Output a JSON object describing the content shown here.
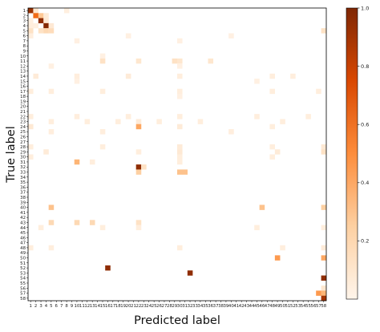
{
  "chart_data": {
    "type": "heatmap",
    "title": "",
    "xlabel": "Predicted label",
    "ylabel": "True label",
    "x_tick_labels": [
      "1",
      "2",
      "3",
      "4",
      "5",
      "6",
      "7",
      "8",
      "9",
      "10",
      "11",
      "12",
      "13",
      "14",
      "15",
      "16",
      "17",
      "18",
      "19",
      "20",
      "21",
      "22",
      "23",
      "24",
      "25",
      "26",
      "27",
      "28",
      "29",
      "30",
      "31",
      "32",
      "33",
      "34",
      "35",
      "36",
      "37",
      "38",
      "39",
      "40",
      "41",
      "42",
      "43",
      "44",
      "45",
      "46",
      "47",
      "48",
      "49",
      "50",
      "51",
      "52",
      "53",
      "54",
      "55",
      "56",
      "57",
      "58"
    ],
    "y_tick_labels": [
      "1",
      "2",
      "3",
      "4",
      "5",
      "6",
      "7",
      "8",
      "9",
      "10",
      "11",
      "12",
      "13",
      "14",
      "15",
      "16",
      "17",
      "18",
      "19",
      "20",
      "21",
      "22",
      "23",
      "24",
      "25",
      "26",
      "27",
      "28",
      "29",
      "30",
      "31",
      "32",
      "33",
      "34",
      "35",
      "36",
      "37",
      "38",
      "39",
      "40",
      "41",
      "42",
      "43",
      "44",
      "45",
      "46",
      "47",
      "48",
      "49",
      "50",
      "51",
      "52",
      "53",
      "54",
      "55",
      "56",
      "57",
      "58"
    ],
    "value_range": [
      0,
      1.0
    ],
    "colormap": "Oranges",
    "colormap_low": "#fff5eb",
    "colormap_high": "#7f2704",
    "colorbar_ticks": [
      0.2,
      0.4,
      0.6,
      0.8,
      1.0
    ],
    "colorbar_tick_labels": [
      "0.2",
      "0.4",
      "0.6",
      "0.8",
      "1.0"
    ],
    "cells": [
      [
        1,
        1,
        0.92
      ],
      [
        1,
        2,
        0.12
      ],
      [
        1,
        8,
        0.05
      ],
      [
        2,
        2,
        0.62
      ],
      [
        2,
        3,
        0.28
      ],
      [
        2,
        4,
        0.08
      ],
      [
        3,
        1,
        0.05
      ],
      [
        3,
        3,
        0.95
      ],
      [
        3,
        4,
        0.1
      ],
      [
        4,
        1,
        0.06
      ],
      [
        4,
        2,
        0.05
      ],
      [
        4,
        4,
        0.98
      ],
      [
        4,
        5,
        0.1
      ],
      [
        5,
        1,
        0.15
      ],
      [
        5,
        3,
        0.15
      ],
      [
        5,
        4,
        0.2
      ],
      [
        5,
        5,
        0.18
      ],
      [
        5,
        58,
        0.15
      ],
      [
        6,
        1,
        0.05
      ],
      [
        6,
        20,
        0.04
      ],
      [
        6,
        40,
        0.04
      ],
      [
        7,
        10,
        0.04
      ],
      [
        7,
        30,
        0.04
      ],
      [
        10,
        15,
        0.04
      ],
      [
        11,
        15,
        0.15
      ],
      [
        11,
        22,
        0.12
      ],
      [
        11,
        29,
        0.15
      ],
      [
        11,
        30,
        0.12
      ],
      [
        11,
        36,
        0.12
      ],
      [
        12,
        5,
        0.04
      ],
      [
        12,
        30,
        0.04
      ],
      [
        14,
        2,
        0.08
      ],
      [
        14,
        10,
        0.06
      ],
      [
        14,
        20,
        0.08
      ],
      [
        14,
        30,
        0.06
      ],
      [
        14,
        48,
        0.06
      ],
      [
        14,
        52,
        0.06
      ],
      [
        15,
        10,
        0.04
      ],
      [
        15,
        45,
        0.04
      ],
      [
        17,
        1,
        0.06
      ],
      [
        17,
        5,
        0.06
      ],
      [
        17,
        15,
        0.06
      ],
      [
        17,
        30,
        0.06
      ],
      [
        17,
        48,
        0.06
      ],
      [
        17,
        57,
        0.06
      ],
      [
        18,
        30,
        0.04
      ],
      [
        22,
        1,
        0.06
      ],
      [
        22,
        10,
        0.06
      ],
      [
        22,
        20,
        0.06
      ],
      [
        22,
        30,
        0.06
      ],
      [
        22,
        45,
        0.06
      ],
      [
        22,
        55,
        0.06
      ],
      [
        23,
        5,
        0.06
      ],
      [
        23,
        12,
        0.06
      ],
      [
        23,
        18,
        0.06
      ],
      [
        23,
        22,
        0.08
      ],
      [
        23,
        26,
        0.06
      ],
      [
        23,
        34,
        0.06
      ],
      [
        23,
        50,
        0.06
      ],
      [
        24,
        1,
        0.1
      ],
      [
        24,
        22,
        0.4
      ],
      [
        24,
        30,
        0.08
      ],
      [
        24,
        48,
        0.06
      ],
      [
        25,
        5,
        0.06
      ],
      [
        25,
        15,
        0.06
      ],
      [
        25,
        40,
        0.06
      ],
      [
        28,
        1,
        0.06
      ],
      [
        28,
        15,
        0.06
      ],
      [
        28,
        30,
        0.08
      ],
      [
        28,
        48,
        0.06
      ],
      [
        28,
        58,
        0.1
      ],
      [
        29,
        4,
        0.08
      ],
      [
        29,
        22,
        0.06
      ],
      [
        29,
        30,
        0.1
      ],
      [
        29,
        49,
        0.08
      ],
      [
        29,
        58,
        0.15
      ],
      [
        30,
        1,
        0.06
      ],
      [
        30,
        30,
        0.06
      ],
      [
        30,
        48,
        0.06
      ],
      [
        31,
        10,
        0.35
      ],
      [
        31,
        13,
        0.06
      ],
      [
        31,
        30,
        0.06
      ],
      [
        32,
        22,
        0.95
      ],
      [
        32,
        23,
        0.15
      ],
      [
        33,
        22,
        0.25
      ],
      [
        33,
        30,
        0.3
      ],
      [
        33,
        31,
        0.3
      ],
      [
        40,
        5,
        0.3
      ],
      [
        40,
        46,
        0.3
      ],
      [
        40,
        58,
        0.25
      ],
      [
        43,
        5,
        0.2
      ],
      [
        43,
        10,
        0.2
      ],
      [
        43,
        13,
        0.2
      ],
      [
        43,
        22,
        0.15
      ],
      [
        44,
        3,
        0.06
      ],
      [
        44,
        15,
        0.06
      ],
      [
        44,
        22,
        0.06
      ],
      [
        44,
        45,
        0.06
      ],
      [
        44,
        58,
        0.06
      ],
      [
        48,
        1,
        0.06
      ],
      [
        48,
        5,
        0.06
      ],
      [
        48,
        30,
        0.06
      ],
      [
        48,
        50,
        0.06
      ],
      [
        48,
        58,
        0.08
      ],
      [
        50,
        49,
        0.45
      ],
      [
        50,
        58,
        0.4
      ],
      [
        52,
        16,
        0.95
      ],
      [
        53,
        32,
        0.95
      ],
      [
        54,
        58,
        0.95
      ],
      [
        56,
        58,
        0.12
      ],
      [
        57,
        57,
        0.45
      ],
      [
        57,
        58,
        0.35
      ],
      [
        58,
        58,
        0.88
      ]
    ]
  }
}
